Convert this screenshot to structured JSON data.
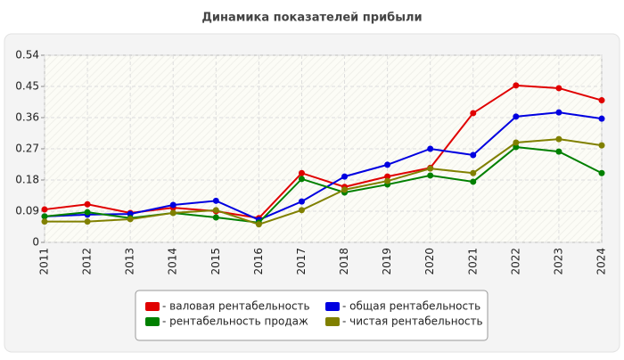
{
  "chart_data": {
    "type": "line",
    "title": "Динамика показателей прибыли",
    "categories": [
      "2011",
      "2012",
      "2013",
      "2014",
      "2015",
      "2016",
      "2017",
      "2018",
      "2019",
      "2020",
      "2021",
      "2022",
      "2023",
      "2024"
    ],
    "series": [
      {
        "name": "- валовая рентабельность",
        "color": "#e00000",
        "values": [
          0.095,
          0.11,
          0.085,
          0.1,
          0.09,
          0.07,
          0.2,
          0.16,
          0.19,
          0.215,
          0.373,
          0.453,
          0.445,
          0.41
        ]
      },
      {
        "name": "- общая рентабельность",
        "color": "#0000e0",
        "values": [
          0.075,
          0.08,
          0.082,
          0.108,
          0.12,
          0.065,
          0.118,
          0.19,
          0.224,
          0.27,
          0.252,
          0.363,
          0.375,
          0.357
        ]
      },
      {
        "name": "- рентабельность продаж",
        "color": "#008000",
        "values": [
          0.075,
          0.087,
          0.07,
          0.085,
          0.072,
          0.057,
          0.183,
          0.144,
          0.167,
          0.193,
          0.175,
          0.275,
          0.262,
          0.2
        ]
      },
      {
        "name": "- чистая рентабельность",
        "color": "#808000",
        "values": [
          0.06,
          0.06,
          0.067,
          0.085,
          0.093,
          0.052,
          0.093,
          0.152,
          0.177,
          0.213,
          0.2,
          0.288,
          0.298,
          0.28
        ]
      }
    ],
    "ylim": [
      0,
      0.54
    ],
    "yticks": [
      0,
      0.09,
      0.18,
      0.27,
      0.36,
      0.45,
      0.54
    ],
    "grid": true,
    "legend": "bottom"
  }
}
